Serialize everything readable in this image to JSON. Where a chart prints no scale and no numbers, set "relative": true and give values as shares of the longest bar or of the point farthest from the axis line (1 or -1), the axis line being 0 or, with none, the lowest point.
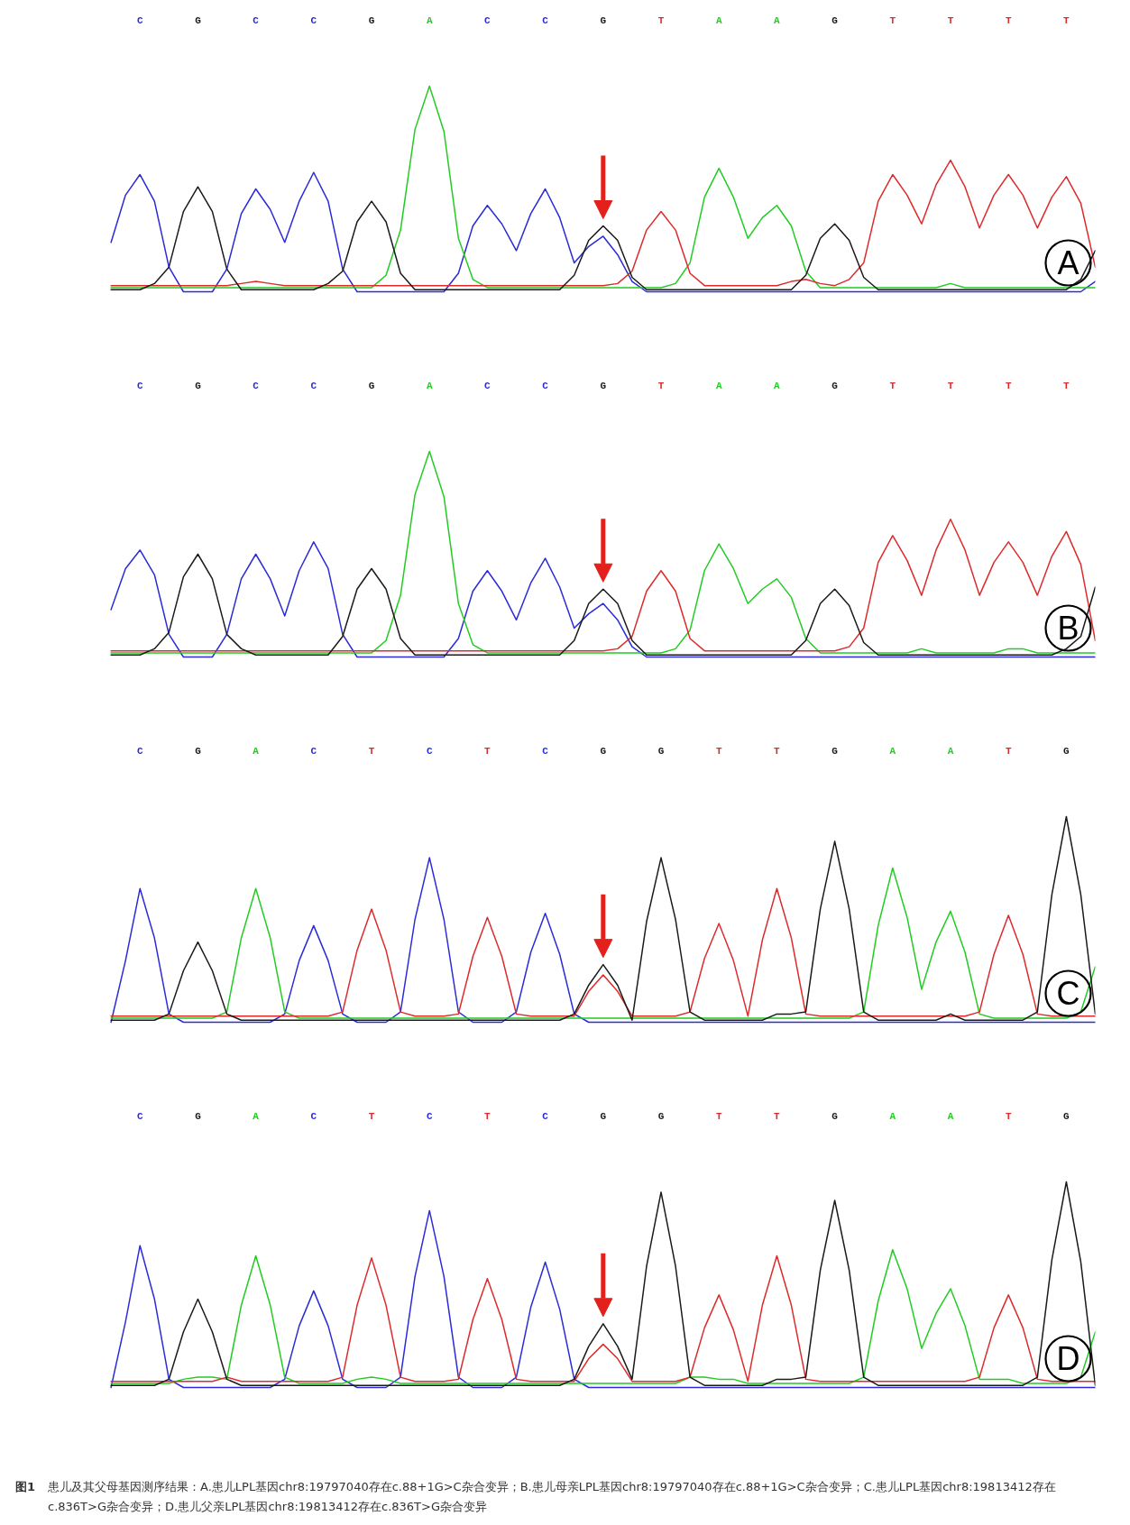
{
  "chart_data": [
    {
      "type": "line",
      "title": "A",
      "relative": true,
      "categories": [
        null,
        null,
        "C",
        null,
        null,
        null,
        "G",
        null,
        null,
        null,
        "C",
        null,
        null,
        null,
        "C",
        null,
        null,
        null,
        "G",
        null,
        null,
        null,
        "A",
        null,
        null,
        null,
        "C",
        null,
        null,
        null,
        "C",
        null,
        null,
        null,
        "G",
        null,
        null,
        null,
        "T",
        null,
        null,
        null,
        "A",
        null,
        null,
        null,
        "A",
        null,
        null,
        null,
        "G",
        null,
        null,
        null,
        "T",
        null,
        null,
        null,
        "T",
        null,
        null,
        null,
        "T",
        null,
        null,
        null,
        "T",
        null,
        null
      ],
      "series": [
        {
          "color": "#2b2bd9",
          "values": [
            0.24,
            0.47,
            0.57,
            0.44,
            0.12,
            0,
            0,
            0,
            0.11,
            0.38,
            0.5,
            0.4,
            0.24,
            0.44,
            0.58,
            0.44,
            0.11,
            0,
            0,
            0,
            0,
            0,
            0,
            0,
            0.09,
            0.32,
            0.42,
            0.33,
            0.2,
            0.38,
            0.5,
            0.36,
            0.14,
            0.22,
            0.27,
            0.18,
            0.05,
            0,
            0,
            0,
            0,
            0,
            0,
            0,
            0,
            0,
            0,
            0,
            0,
            0,
            0,
            0,
            0,
            0,
            0,
            0,
            0,
            0,
            0,
            0,
            0,
            0,
            0,
            0,
            0,
            0,
            0,
            0,
            0.05
          ]
        },
        {
          "color": "#22cc22",
          "values": [
            0.02,
            0.02,
            0.02,
            0.02,
            0.02,
            0.02,
            0.02,
            0.02,
            0.02,
            0.02,
            0.02,
            0.02,
            0.02,
            0.02,
            0.02,
            0.02,
            0.02,
            0.02,
            0.02,
            0.08,
            0.3,
            0.79,
            1.0,
            0.78,
            0.26,
            0.06,
            0.02,
            0.02,
            0.02,
            0.02,
            0.02,
            0.02,
            0.02,
            0.02,
            0.02,
            0.02,
            0.02,
            0.02,
            0.02,
            0.04,
            0.14,
            0.46,
            0.6,
            0.46,
            0.26,
            0.36,
            0.42,
            0.32,
            0.1,
            0.02,
            0.02,
            0.02,
            0.02,
            0.02,
            0.02,
            0.02,
            0.02,
            0.02,
            0.04,
            0.02,
            0.02,
            0.02,
            0.02,
            0.02,
            0.02,
            0.02,
            0.02,
            0.02,
            0.02
          ]
        },
        {
          "color": "#dd2b2b",
          "values": [
            0.03,
            0.03,
            0.03,
            0.03,
            0.03,
            0.03,
            0.03,
            0.03,
            0.03,
            0.04,
            0.05,
            0.04,
            0.03,
            0.03,
            0.03,
            0.03,
            0.03,
            0.03,
            0.03,
            0.03,
            0.03,
            0.03,
            0.03,
            0.03,
            0.03,
            0.03,
            0.03,
            0.03,
            0.03,
            0.03,
            0.03,
            0.03,
            0.03,
            0.03,
            0.03,
            0.04,
            0.1,
            0.3,
            0.39,
            0.3,
            0.09,
            0.03,
            0.03,
            0.03,
            0.03,
            0.03,
            0.03,
            0.05,
            0.06,
            0.04,
            0.03,
            0.06,
            0.14,
            0.44,
            0.57,
            0.47,
            0.33,
            0.52,
            0.64,
            0.51,
            0.31,
            0.47,
            0.57,
            0.47,
            0.31,
            0.46,
            0.56,
            0.43,
            0.12
          ]
        },
        {
          "color": "#1a1a1a",
          "values": [
            0.01,
            0.01,
            0.01,
            0.04,
            0.12,
            0.39,
            0.51,
            0.39,
            0.11,
            0.01,
            0.01,
            0.01,
            0.01,
            0.01,
            0.01,
            0.04,
            0.1,
            0.34,
            0.44,
            0.34,
            0.09,
            0.01,
            0.01,
            0.01,
            0.01,
            0.01,
            0.01,
            0.01,
            0.01,
            0.01,
            0.01,
            0.01,
            0.08,
            0.25,
            0.32,
            0.25,
            0.07,
            0.01,
            0.01,
            0.01,
            0.01,
            0.01,
            0.01,
            0.01,
            0.01,
            0.01,
            0.01,
            0.01,
            0.08,
            0.26,
            0.33,
            0.25,
            0.07,
            0.01,
            0.01,
            0.01,
            0.01,
            0.01,
            0.01,
            0.01,
            0.01,
            0.01,
            0.01,
            0.01,
            0.01,
            0.01,
            0.01,
            0.06,
            0.2
          ]
        }
      ]
    },
    {
      "type": "line",
      "title": "B",
      "relative": true,
      "categories": [
        null,
        null,
        "C",
        null,
        null,
        null,
        "G",
        null,
        null,
        null,
        "C",
        null,
        null,
        null,
        "C",
        null,
        null,
        null,
        "G",
        null,
        null,
        null,
        "A",
        null,
        null,
        null,
        "C",
        null,
        null,
        null,
        "C",
        null,
        null,
        null,
        "G",
        null,
        null,
        null,
        "T",
        null,
        null,
        null,
        "A",
        null,
        null,
        null,
        "A",
        null,
        null,
        null,
        "G",
        null,
        null,
        null,
        "T",
        null,
        null,
        null,
        "T",
        null,
        null,
        null,
        "T",
        null,
        null,
        null,
        "T",
        null,
        null
      ],
      "series": [
        {
          "color": "#2b2bd9",
          "values": [
            0.23,
            0.43,
            0.52,
            0.4,
            0.11,
            0,
            0,
            0,
            0.11,
            0.38,
            0.5,
            0.38,
            0.2,
            0.42,
            0.56,
            0.43,
            0.11,
            0,
            0,
            0,
            0,
            0,
            0,
            0,
            0.09,
            0.32,
            0.42,
            0.32,
            0.18,
            0.36,
            0.48,
            0.34,
            0.14,
            0.21,
            0.26,
            0.18,
            0.05,
            0,
            0,
            0,
            0,
            0,
            0,
            0,
            0,
            0,
            0,
            0,
            0,
            0,
            0,
            0,
            0,
            0,
            0,
            0,
            0,
            0,
            0,
            0,
            0,
            0,
            0,
            0,
            0,
            0,
            0,
            0,
            0
          ]
        },
        {
          "color": "#22cc22",
          "values": [
            0.02,
            0.02,
            0.02,
            0.02,
            0.02,
            0.02,
            0.02,
            0.02,
            0.02,
            0.02,
            0.02,
            0.02,
            0.02,
            0.02,
            0.02,
            0.02,
            0.02,
            0.02,
            0.02,
            0.08,
            0.3,
            0.79,
            1.0,
            0.78,
            0.26,
            0.06,
            0.02,
            0.02,
            0.02,
            0.02,
            0.02,
            0.02,
            0.02,
            0.02,
            0.02,
            0.02,
            0.02,
            0.02,
            0.02,
            0.04,
            0.13,
            0.42,
            0.55,
            0.43,
            0.26,
            0.33,
            0.38,
            0.29,
            0.09,
            0.02,
            0.02,
            0.02,
            0.02,
            0.02,
            0.02,
            0.02,
            0.04,
            0.02,
            0.02,
            0.02,
            0.02,
            0.02,
            0.04,
            0.04,
            0.02,
            0.02,
            0.02,
            0.02,
            0.02
          ]
        },
        {
          "color": "#dd2b2b",
          "values": [
            0.03,
            0.03,
            0.03,
            0.03,
            0.03,
            0.03,
            0.03,
            0.03,
            0.03,
            0.03,
            0.03,
            0.03,
            0.03,
            0.03,
            0.03,
            0.03,
            0.03,
            0.03,
            0.03,
            0.03,
            0.03,
            0.03,
            0.03,
            0.03,
            0.03,
            0.03,
            0.03,
            0.03,
            0.03,
            0.03,
            0.03,
            0.03,
            0.03,
            0.03,
            0.03,
            0.04,
            0.1,
            0.32,
            0.42,
            0.32,
            0.09,
            0.03,
            0.03,
            0.03,
            0.03,
            0.03,
            0.03,
            0.03,
            0.03,
            0.03,
            0.03,
            0.05,
            0.14,
            0.46,
            0.59,
            0.47,
            0.3,
            0.52,
            0.67,
            0.52,
            0.3,
            0.46,
            0.56,
            0.46,
            0.3,
            0.49,
            0.61,
            0.45,
            0.08
          ]
        },
        {
          "color": "#1a1a1a",
          "values": [
            0.01,
            0.01,
            0.01,
            0.04,
            0.12,
            0.39,
            0.5,
            0.38,
            0.11,
            0.04,
            0.01,
            0.01,
            0.01,
            0.01,
            0.01,
            0.01,
            0.1,
            0.33,
            0.43,
            0.33,
            0.09,
            0.01,
            0.01,
            0.01,
            0.01,
            0.01,
            0.01,
            0.01,
            0.01,
            0.01,
            0.01,
            0.01,
            0.08,
            0.26,
            0.33,
            0.26,
            0.08,
            0.01,
            0.01,
            0.01,
            0.01,
            0.01,
            0.01,
            0.01,
            0.01,
            0.01,
            0.01,
            0.01,
            0.08,
            0.26,
            0.33,
            0.25,
            0.07,
            0.01,
            0.01,
            0.01,
            0.01,
            0.01,
            0.01,
            0.01,
            0.01,
            0.01,
            0.01,
            0.01,
            0.01,
            0.01,
            0.04,
            0.1,
            0.34
          ]
        }
      ]
    },
    {
      "type": "line",
      "title": "C",
      "relative": true,
      "categories": [
        null,
        null,
        "C",
        null,
        null,
        null,
        "G",
        null,
        null,
        null,
        "A",
        null,
        null,
        null,
        "C",
        null,
        null,
        null,
        "T",
        null,
        null,
        null,
        "C",
        null,
        null,
        null,
        "T",
        null,
        null,
        null,
        "C",
        null,
        null,
        null,
        "G",
        null,
        null,
        null,
        "G",
        null,
        null,
        null,
        "T",
        null,
        null,
        null,
        "T",
        null,
        null,
        null,
        "G",
        null,
        null,
        null,
        "A",
        null,
        null,
        null,
        "A",
        null,
        null,
        null,
        "T",
        null,
        null,
        null,
        "G",
        null,
        null
      ],
      "series": [
        {
          "color": "#2b2bd9",
          "values": [
            0,
            0.3,
            0.65,
            0.41,
            0.04,
            0,
            0,
            0,
            0,
            0,
            0,
            0,
            0.04,
            0.3,
            0.47,
            0.3,
            0.04,
            0,
            0,
            0,
            0.05,
            0.5,
            0.8,
            0.5,
            0.05,
            0,
            0,
            0,
            0.05,
            0.34,
            0.53,
            0.33,
            0.04,
            0,
            0,
            0,
            0,
            0,
            0,
            0,
            0,
            0,
            0,
            0,
            0,
            0,
            0,
            0,
            0,
            0,
            0,
            0,
            0,
            0,
            0,
            0,
            0,
            0,
            0,
            0,
            0,
            0,
            0,
            0,
            0,
            0,
            0,
            0,
            0
          ]
        },
        {
          "color": "#22cc22",
          "values": [
            0.02,
            0.02,
            0.02,
            0.02,
            0.02,
            0.02,
            0.02,
            0.02,
            0.05,
            0.41,
            0.65,
            0.41,
            0.05,
            0.02,
            0.02,
            0.02,
            0.02,
            0.02,
            0.02,
            0.02,
            0.02,
            0.02,
            0.02,
            0.02,
            0.02,
            0.02,
            0.02,
            0.02,
            0.02,
            0.02,
            0.02,
            0.02,
            0.02,
            0.02,
            0.02,
            0.02,
            0.02,
            0.02,
            0.02,
            0.02,
            0.02,
            0.02,
            0.02,
            0.02,
            0.02,
            0.02,
            0.02,
            0.02,
            0.02,
            0.02,
            0.02,
            0.02,
            0.05,
            0.47,
            0.75,
            0.51,
            0.16,
            0.39,
            0.54,
            0.34,
            0.04,
            0.02,
            0.02,
            0.02,
            0.02,
            0.02,
            0.02,
            0.05,
            0.27
          ]
        },
        {
          "color": "#dd2b2b",
          "values": [
            0.03,
            0.03,
            0.03,
            0.03,
            0.03,
            0.03,
            0.03,
            0.03,
            0.03,
            0.03,
            0.03,
            0.03,
            0.03,
            0.03,
            0.03,
            0.03,
            0.05,
            0.35,
            0.55,
            0.35,
            0.05,
            0.03,
            0.03,
            0.03,
            0.04,
            0.32,
            0.51,
            0.32,
            0.04,
            0.03,
            0.03,
            0.03,
            0.03,
            0.15,
            0.23,
            0.15,
            0.03,
            0.03,
            0.03,
            0.03,
            0.05,
            0.31,
            0.48,
            0.3,
            0.03,
            0.4,
            0.65,
            0.41,
            0.04,
            0.03,
            0.03,
            0.03,
            0.03,
            0.03,
            0.03,
            0.03,
            0.03,
            0.03,
            0.03,
            0.03,
            0.05,
            0.33,
            0.52,
            0.33,
            0.04,
            0.03,
            0.03,
            0.03,
            0.03
          ]
        },
        {
          "color": "#1a1a1a",
          "values": [
            0.01,
            0.01,
            0.01,
            0.01,
            0.04,
            0.25,
            0.39,
            0.25,
            0.04,
            0.01,
            0.01,
            0.01,
            0.01,
            0.01,
            0.01,
            0.01,
            0.01,
            0.01,
            0.01,
            0.01,
            0.01,
            0.01,
            0.01,
            0.01,
            0.01,
            0.01,
            0.01,
            0.01,
            0.01,
            0.01,
            0.01,
            0.01,
            0.04,
            0.18,
            0.28,
            0.18,
            0.01,
            0.49,
            0.8,
            0.5,
            0.05,
            0.01,
            0.01,
            0.01,
            0.01,
            0.01,
            0.04,
            0.04,
            0.05,
            0.55,
            0.88,
            0.55,
            0.05,
            0.01,
            0.01,
            0.01,
            0.01,
            0.01,
            0.04,
            0.01,
            0.01,
            0.01,
            0.01,
            0.01,
            0.05,
            0.62,
            1.0,
            0.62,
            0.04
          ]
        }
      ]
    },
    {
      "type": "line",
      "title": "D",
      "relative": true,
      "categories": [
        null,
        null,
        "C",
        null,
        null,
        null,
        "G",
        null,
        null,
        null,
        "A",
        null,
        null,
        null,
        "C",
        null,
        null,
        null,
        "T",
        null,
        null,
        null,
        "C",
        null,
        null,
        null,
        "T",
        null,
        null,
        null,
        "C",
        null,
        null,
        null,
        "G",
        null,
        null,
        null,
        "G",
        null,
        null,
        null,
        "T",
        null,
        null,
        null,
        "T",
        null,
        null,
        null,
        "G",
        null,
        null,
        null,
        "A",
        null,
        null,
        null,
        "A",
        null,
        null,
        null,
        "T",
        null,
        null,
        null,
        "G",
        null,
        null
      ],
      "series": [
        {
          "color": "#2b2bd9",
          "values": [
            0,
            0.32,
            0.69,
            0.43,
            0.04,
            0,
            0,
            0,
            0,
            0,
            0,
            0,
            0.04,
            0.3,
            0.47,
            0.3,
            0.04,
            0,
            0,
            0,
            0.05,
            0.54,
            0.86,
            0.54,
            0.05,
            0,
            0,
            0,
            0.05,
            0.39,
            0.61,
            0.38,
            0.04,
            0,
            0,
            0,
            0,
            0,
            0,
            0,
            0,
            0,
            0,
            0,
            0,
            0,
            0,
            0,
            0,
            0,
            0,
            0,
            0,
            0,
            0,
            0,
            0,
            0,
            0,
            0,
            0,
            0,
            0,
            0,
            0,
            0,
            0,
            0,
            0
          ]
        },
        {
          "color": "#22cc22",
          "values": [
            0.02,
            0.02,
            0.02,
            0.02,
            0.02,
            0.04,
            0.05,
            0.05,
            0.04,
            0.4,
            0.64,
            0.4,
            0.05,
            0.02,
            0.02,
            0.02,
            0.02,
            0.04,
            0.05,
            0.04,
            0.02,
            0.02,
            0.02,
            0.02,
            0.02,
            0.02,
            0.02,
            0.02,
            0.02,
            0.02,
            0.02,
            0.02,
            0.02,
            0.02,
            0.02,
            0.02,
            0.02,
            0.02,
            0.02,
            0.02,
            0.05,
            0.05,
            0.04,
            0.04,
            0.02,
            0.02,
            0.02,
            0.02,
            0.02,
            0.02,
            0.02,
            0.02,
            0.05,
            0.42,
            0.67,
            0.48,
            0.19,
            0.36,
            0.48,
            0.3,
            0.04,
            0.04,
            0.04,
            0.02,
            0.02,
            0.02,
            0.02,
            0.05,
            0.27
          ]
        },
        {
          "color": "#dd2b2b",
          "values": [
            0.03,
            0.03,
            0.03,
            0.03,
            0.03,
            0.03,
            0.03,
            0.03,
            0.05,
            0.03,
            0.03,
            0.03,
            0.03,
            0.03,
            0.03,
            0.03,
            0.05,
            0.4,
            0.63,
            0.4,
            0.05,
            0.03,
            0.03,
            0.03,
            0.04,
            0.33,
            0.53,
            0.33,
            0.04,
            0.03,
            0.03,
            0.03,
            0.03,
            0.14,
            0.21,
            0.14,
            0.03,
            0.03,
            0.03,
            0.03,
            0.05,
            0.29,
            0.45,
            0.28,
            0.03,
            0.4,
            0.64,
            0.4,
            0.04,
            0.03,
            0.03,
            0.03,
            0.03,
            0.03,
            0.03,
            0.03,
            0.03,
            0.03,
            0.03,
            0.03,
            0.05,
            0.29,
            0.45,
            0.29,
            0.04,
            0.03,
            0.03,
            0.03,
            0.03
          ]
        },
        {
          "color": "#1a1a1a",
          "values": [
            0.01,
            0.01,
            0.01,
            0.01,
            0.04,
            0.27,
            0.43,
            0.27,
            0.04,
            0.01,
            0.01,
            0.01,
            0.01,
            0.01,
            0.01,
            0.01,
            0.01,
            0.01,
            0.01,
            0.01,
            0.01,
            0.01,
            0.01,
            0.01,
            0.01,
            0.01,
            0.01,
            0.01,
            0.01,
            0.01,
            0.01,
            0.01,
            0.04,
            0.2,
            0.31,
            0.2,
            0.04,
            0.59,
            0.95,
            0.59,
            0.05,
            0.01,
            0.01,
            0.01,
            0.01,
            0.01,
            0.04,
            0.04,
            0.05,
            0.57,
            0.91,
            0.57,
            0.05,
            0.01,
            0.01,
            0.01,
            0.01,
            0.01,
            0.01,
            0.01,
            0.01,
            0.01,
            0.01,
            0.01,
            0.05,
            0.62,
            1.0,
            0.61,
            0.01
          ]
        }
      ],
      "annotations": [
        "图1 患儿及其父母基因测序结果：A.患儿LPL基因chr8:19797040存在c.88+1G>C杂合变异；B.患儿母亲LPL基因chr8:19797040存在c.88+1G>C杂合变异；C.患儿LPL基因chr8:19813412存在c.836T>G杂合变异；D.患儿父亲LPL基因chr8:19813412存在c.836T>G杂合变异"
      ]
    }
  ]
}
